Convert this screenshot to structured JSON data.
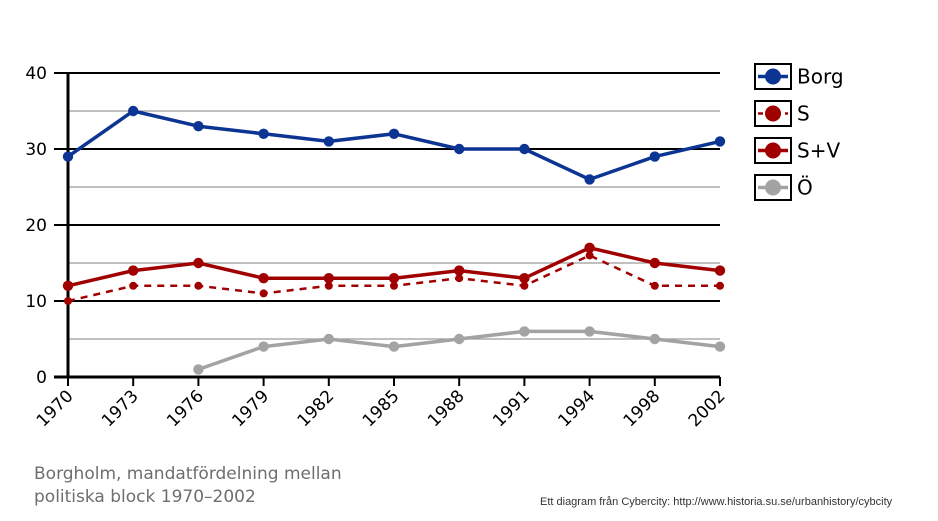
{
  "chart_data": {
    "type": "line",
    "categories": [
      "1970",
      "1973",
      "1976",
      "1979",
      "1982",
      "1985",
      "1988",
      "1991",
      "1994",
      "1998",
      "2002"
    ],
    "ylim": [
      0,
      40
    ],
    "yticks": [
      0,
      10,
      20,
      30,
      40
    ],
    "grid": true,
    "legend_position": "right",
    "series": [
      {
        "name": "Borg",
        "key": "borg",
        "color": "#0c3593",
        "style": "solid",
        "values": [
          29,
          35,
          33,
          32,
          31,
          32,
          30,
          30,
          26,
          29,
          31
        ]
      },
      {
        "name": "S",
        "key": "s",
        "color": "#a00000",
        "style": "dashed",
        "values": [
          10,
          12,
          12,
          11,
          12,
          12,
          13,
          12,
          16,
          12,
          12
        ]
      },
      {
        "name": "S+V",
        "key": "sv",
        "color": "#a00000",
        "style": "solid",
        "values": [
          12,
          14,
          15,
          13,
          13,
          13,
          14,
          13,
          17,
          15,
          14
        ]
      },
      {
        "name": "Ö",
        "key": "o",
        "color": "#a3a3a3",
        "style": "solid",
        "values": [
          null,
          null,
          1,
          4,
          5,
          4,
          5,
          6,
          6,
          5,
          4
        ]
      }
    ],
    "title": "Borgholm, mandatfördelning mellan politiska block 1970–2002",
    "title_lines": [
      "Borgholm, mandatfördelning mellan",
      "politiska block 1970–2002"
    ],
    "source": "Ett diagram från Cybercity: http://www.historia.su.se/urbanhistory/cybcity"
  }
}
